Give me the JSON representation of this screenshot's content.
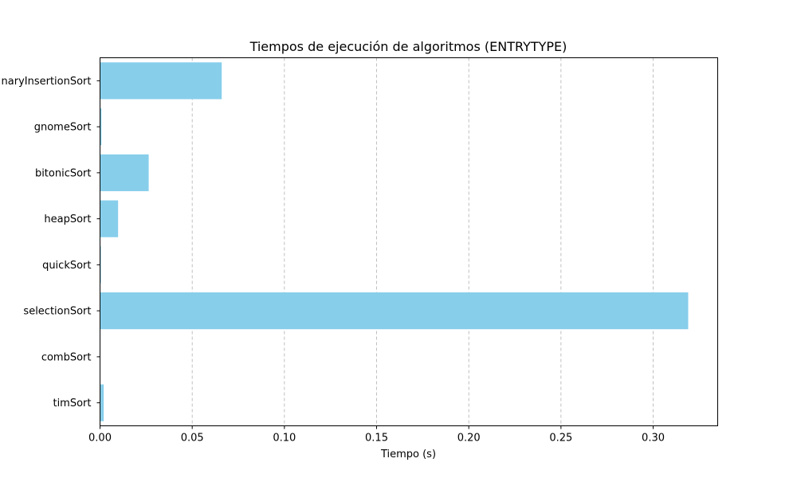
{
  "chart_data": {
    "type": "bar",
    "orientation": "horizontal",
    "title": "Tiempos de ejecución de algoritmos (ENTRYTYPE)",
    "xlabel": "Tiempo (s)",
    "ylabel": "",
    "categories": [
      "timSort",
      "combSort",
      "selectionSort",
      "quickSort",
      "heapSort",
      "bitonicSort",
      "gnomeSort",
      "binaryInsertionSort"
    ],
    "category_labels_shown": [
      "timSort",
      "combSort",
      "selectionSort",
      "quickSort",
      "heapSort",
      "bitonicSort",
      "gnomeSort",
      "naryInsertionSort"
    ],
    "values": [
      0.002,
      0.0002,
      0.319,
      0.0005,
      0.0098,
      0.0264,
      0.0008,
      0.066
    ],
    "xlim": [
      0,
      0.335
    ],
    "xticks": [
      0.0,
      0.05,
      0.1,
      0.15,
      0.2,
      0.25,
      0.3
    ],
    "xtick_labels": [
      "0.00",
      "0.05",
      "0.10",
      "0.15",
      "0.20",
      "0.25",
      "0.30"
    ],
    "grid": "x-dashed",
    "bar_color": "#87ceeb",
    "legend": "none"
  }
}
